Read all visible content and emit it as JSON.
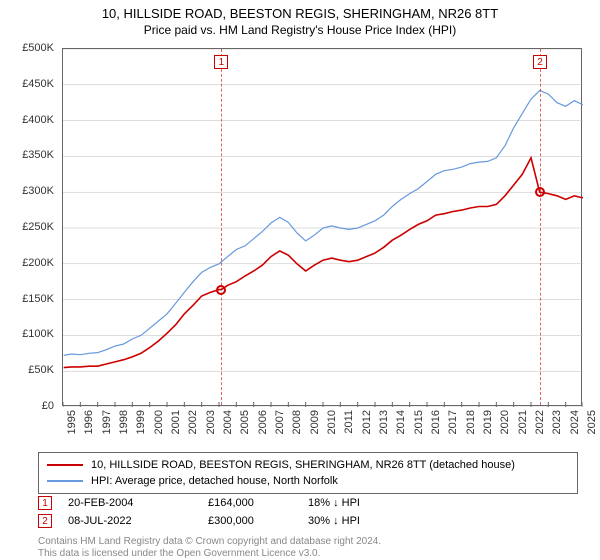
{
  "title": "10, HILLSIDE ROAD, BEESTON REGIS, SHERINGHAM, NR26 8TT",
  "subtitle": "Price paid vs. HM Land Registry's House Price Index (HPI)",
  "chart": {
    "type": "line",
    "background_color": "#ffffff",
    "grid_color": "#bbbbbb",
    "border_color": "#666666",
    "x_years": [
      1995,
      1996,
      1997,
      1998,
      1999,
      2000,
      2001,
      2002,
      2003,
      2004,
      2005,
      2006,
      2007,
      2008,
      2009,
      2010,
      2011,
      2012,
      2013,
      2014,
      2015,
      2016,
      2017,
      2018,
      2019,
      2020,
      2021,
      2022,
      2023,
      2024,
      2025
    ],
    "ylim": [
      0,
      500000
    ],
    "ytick_step": 50000,
    "ytick_labels": [
      "£0",
      "£50K",
      "£100K",
      "£150K",
      "£200K",
      "£250K",
      "£300K",
      "£350K",
      "£400K",
      "£450K",
      "£500K"
    ],
    "label_fontsize": 11,
    "series": [
      {
        "name": "price_paid",
        "label": "10, HILLSIDE ROAD, BEESTON REGIS, SHERINGHAM, NR26 8TT (detached house)",
        "color": "#cc0000",
        "width": 1.6,
        "points": [
          [
            1995.04,
            55000
          ],
          [
            1995.5,
            56000
          ],
          [
            1996,
            56000
          ],
          [
            1996.5,
            57000
          ],
          [
            1997,
            57000
          ],
          [
            1997.5,
            60000
          ],
          [
            1998,
            63000
          ],
          [
            1998.5,
            66000
          ],
          [
            1999,
            70000
          ],
          [
            1999.5,
            75000
          ],
          [
            2000,
            83000
          ],
          [
            2000.5,
            92000
          ],
          [
            2001,
            103000
          ],
          [
            2001.5,
            115000
          ],
          [
            2002,
            130000
          ],
          [
            2002.5,
            142000
          ],
          [
            2003,
            155000
          ],
          [
            2003.5,
            160000
          ],
          [
            2004,
            164000
          ],
          [
            2004.14,
            164000
          ],
          [
            2004.5,
            170000
          ],
          [
            2005,
            175000
          ],
          [
            2005.5,
            183000
          ],
          [
            2006,
            190000
          ],
          [
            2006.5,
            198000
          ],
          [
            2007,
            210000
          ],
          [
            2007.5,
            218000
          ],
          [
            2008,
            212000
          ],
          [
            2008.5,
            200000
          ],
          [
            2009,
            190000
          ],
          [
            2009.5,
            198000
          ],
          [
            2010,
            205000
          ],
          [
            2010.5,
            208000
          ],
          [
            2011,
            205000
          ],
          [
            2011.5,
            203000
          ],
          [
            2012,
            205000
          ],
          [
            2012.5,
            210000
          ],
          [
            2013,
            215000
          ],
          [
            2013.5,
            223000
          ],
          [
            2014,
            233000
          ],
          [
            2014.5,
            240000
          ],
          [
            2015,
            248000
          ],
          [
            2015.5,
            255000
          ],
          [
            2016,
            260000
          ],
          [
            2016.5,
            268000
          ],
          [
            2017,
            270000
          ],
          [
            2017.5,
            273000
          ],
          [
            2018,
            275000
          ],
          [
            2018.5,
            278000
          ],
          [
            2019,
            280000
          ],
          [
            2019.5,
            280000
          ],
          [
            2020,
            283000
          ],
          [
            2020.5,
            295000
          ],
          [
            2021,
            310000
          ],
          [
            2021.5,
            325000
          ],
          [
            2022,
            348000
          ],
          [
            2022.5,
            300000
          ],
          [
            2022.52,
            300000
          ],
          [
            2023,
            298000
          ],
          [
            2023.5,
            295000
          ],
          [
            2024,
            290000
          ],
          [
            2024.5,
            295000
          ],
          [
            2025,
            292000
          ]
        ]
      },
      {
        "name": "hpi",
        "label": "HPI: Average price, detached house, North Norfolk",
        "color": "#6699dd",
        "width": 1.2,
        "points": [
          [
            1995.04,
            72000
          ],
          [
            1995.5,
            74000
          ],
          [
            1996,
            73000
          ],
          [
            1996.5,
            75000
          ],
          [
            1997,
            76000
          ],
          [
            1997.5,
            80000
          ],
          [
            1998,
            85000
          ],
          [
            1998.5,
            88000
          ],
          [
            1999,
            95000
          ],
          [
            1999.5,
            100000
          ],
          [
            2000,
            110000
          ],
          [
            2000.5,
            120000
          ],
          [
            2001,
            130000
          ],
          [
            2001.5,
            145000
          ],
          [
            2002,
            160000
          ],
          [
            2002.5,
            175000
          ],
          [
            2003,
            188000
          ],
          [
            2003.5,
            195000
          ],
          [
            2004,
            200000
          ],
          [
            2004.5,
            210000
          ],
          [
            2005,
            220000
          ],
          [
            2005.5,
            225000
          ],
          [
            2006,
            235000
          ],
          [
            2006.5,
            245000
          ],
          [
            2007,
            257000
          ],
          [
            2007.5,
            265000
          ],
          [
            2008,
            258000
          ],
          [
            2008.5,
            243000
          ],
          [
            2009,
            232000
          ],
          [
            2009.5,
            240000
          ],
          [
            2010,
            250000
          ],
          [
            2010.5,
            253000
          ],
          [
            2011,
            250000
          ],
          [
            2011.5,
            248000
          ],
          [
            2012,
            250000
          ],
          [
            2012.5,
            255000
          ],
          [
            2013,
            260000
          ],
          [
            2013.5,
            268000
          ],
          [
            2014,
            280000
          ],
          [
            2014.5,
            290000
          ],
          [
            2015,
            298000
          ],
          [
            2015.5,
            305000
          ],
          [
            2016,
            315000
          ],
          [
            2016.5,
            325000
          ],
          [
            2017,
            330000
          ],
          [
            2017.5,
            332000
          ],
          [
            2018,
            335000
          ],
          [
            2018.5,
            340000
          ],
          [
            2019,
            342000
          ],
          [
            2019.5,
            343000
          ],
          [
            2020,
            348000
          ],
          [
            2020.5,
            365000
          ],
          [
            2021,
            390000
          ],
          [
            2021.5,
            410000
          ],
          [
            2022,
            430000
          ],
          [
            2022.5,
            442000
          ],
          [
            2023,
            437000
          ],
          [
            2023.5,
            425000
          ],
          [
            2024,
            420000
          ],
          [
            2024.5,
            428000
          ],
          [
            2025,
            422000
          ]
        ]
      }
    ],
    "transactions": [
      {
        "n": "1",
        "year_frac": 2004.14,
        "date": "20-FEB-2004",
        "price": "£164,000",
        "price_n": 164000,
        "delta": "18% ↓ HPI"
      },
      {
        "n": "2",
        "year_frac": 2022.52,
        "date": "08-JUL-2022",
        "price": "£300,000",
        "price_n": 300000,
        "delta": "30% ↓ HPI"
      }
    ]
  },
  "footer": {
    "line1": "Contains HM Land Registry data © Crown copyright and database right 2024.",
    "line2": "This data is licensed under the Open Government Licence v3.0."
  }
}
